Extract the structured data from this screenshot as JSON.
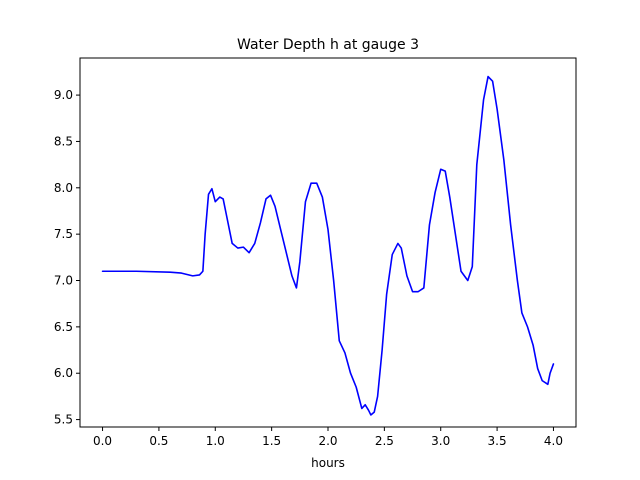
{
  "chart_data": {
    "type": "line",
    "title": "Water Depth h at gauge 3",
    "xlabel": "hours",
    "ylabel": "",
    "xlim": [
      -0.2,
      4.2
    ],
    "ylim": [
      5.42,
      9.4
    ],
    "xticks": [
      0.0,
      0.5,
      1.0,
      1.5,
      2.0,
      2.5,
      3.0,
      3.5,
      4.0
    ],
    "xtick_labels": [
      "0.0",
      "0.5",
      "1.0",
      "1.5",
      "2.0",
      "2.5",
      "3.0",
      "3.5",
      "4.0"
    ],
    "yticks": [
      5.5,
      6.0,
      6.5,
      7.0,
      7.5,
      8.0,
      8.5,
      9.0
    ],
    "ytick_labels": [
      "5.5",
      "6.0",
      "6.5",
      "7.0",
      "7.5",
      "8.0",
      "8.5",
      "9.0"
    ],
    "grid": false,
    "series": [
      {
        "color": "#0000ff",
        "x": [
          0.0,
          0.3,
          0.6,
          0.7,
          0.8,
          0.86,
          0.89,
          0.91,
          0.94,
          0.97,
          1.0,
          1.04,
          1.07,
          1.1,
          1.15,
          1.2,
          1.25,
          1.3,
          1.35,
          1.4,
          1.45,
          1.49,
          1.53,
          1.58,
          1.63,
          1.68,
          1.72,
          1.75,
          1.8,
          1.85,
          1.9,
          1.95,
          2.0,
          2.05,
          2.1,
          2.15,
          2.2,
          2.25,
          2.3,
          2.33,
          2.36,
          2.38,
          2.41,
          2.44,
          2.48,
          2.52,
          2.57,
          2.62,
          2.65,
          2.7,
          2.75,
          2.8,
          2.85,
          2.9,
          2.95,
          3.0,
          3.04,
          3.08,
          3.13,
          3.18,
          3.24,
          3.28,
          3.32,
          3.35,
          3.38,
          3.42,
          3.46,
          3.5,
          3.56,
          3.62,
          3.68,
          3.72,
          3.77,
          3.82,
          3.86,
          3.9,
          3.95,
          3.97,
          4.0
        ],
        "y": [
          7.1,
          7.1,
          7.09,
          7.08,
          7.05,
          7.06,
          7.1,
          7.5,
          7.93,
          7.99,
          7.85,
          7.9,
          7.88,
          7.7,
          7.4,
          7.35,
          7.36,
          7.3,
          7.4,
          7.62,
          7.88,
          7.92,
          7.8,
          7.55,
          7.3,
          7.05,
          6.92,
          7.2,
          7.85,
          8.05,
          8.05,
          7.9,
          7.55,
          7.0,
          6.35,
          6.22,
          6.0,
          5.85,
          5.62,
          5.66,
          5.6,
          5.55,
          5.58,
          5.75,
          6.25,
          6.85,
          7.28,
          7.4,
          7.35,
          7.05,
          6.88,
          6.88,
          6.92,
          7.6,
          7.95,
          8.2,
          8.18,
          7.9,
          7.5,
          7.1,
          7.0,
          7.15,
          8.25,
          8.6,
          8.95,
          9.2,
          9.15,
          8.85,
          8.3,
          7.6,
          7.0,
          6.65,
          6.5,
          6.3,
          6.05,
          5.92,
          5.88,
          6.0,
          6.1
        ]
      }
    ]
  }
}
